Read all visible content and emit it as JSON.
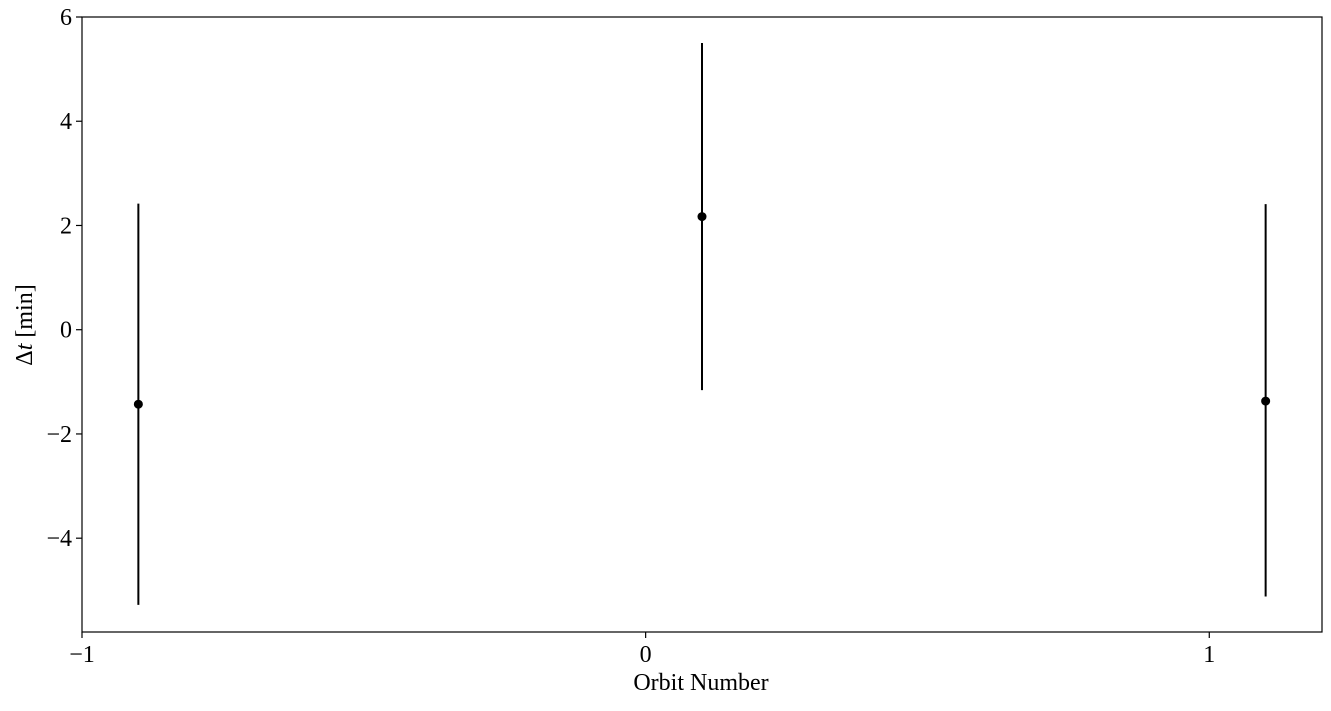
{
  "chart_data": {
    "type": "errorbar",
    "title": "",
    "xlabel": "Orbit Number",
    "ylabel_main": "Δ",
    "ylabel_var": "t",
    "ylabel_unit": " [min]",
    "xlim": [
      -1.0,
      1.2
    ],
    "ylim": [
      -5.8,
      6.0
    ],
    "xticks": [
      -1,
      0,
      1
    ],
    "xtick_labels": [
      "−1",
      "0",
      "1"
    ],
    "yticks": [
      -4,
      -2,
      0,
      2,
      4,
      6
    ],
    "ytick_labels": [
      "−4",
      "−2",
      "0",
      "2",
      "4",
      "6"
    ],
    "grid": false,
    "legend": false,
    "marker_color": "#000000",
    "points": [
      {
        "x": -0.9,
        "y": -1.43,
        "y_low": -5.28,
        "y_high": 2.42
      },
      {
        "x": 0.1,
        "y": 2.17,
        "y_low": -1.16,
        "y_high": 5.5
      },
      {
        "x": 1.1,
        "y": -1.37,
        "y_low": -5.12,
        "y_high": 2.41
      }
    ]
  }
}
